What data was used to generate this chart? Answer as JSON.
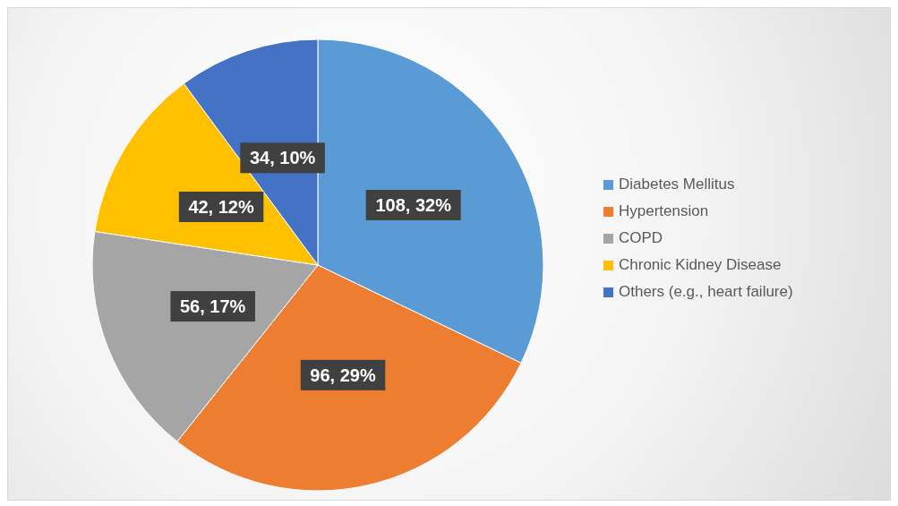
{
  "chart_data": {
    "type": "pie",
    "categories": [
      "Diabetes Mellitus",
      "Hypertension",
      "COPD",
      "Chronic Kidney Disease",
      "Others (e.g., heart failure)"
    ],
    "values": [
      108,
      96,
      56,
      42,
      34
    ],
    "colors": [
      "#5b9bd5",
      "#ed7d31",
      "#a5a5a5",
      "#ffc000",
      "#4472c4"
    ],
    "value_labels": [
      "108, 32%",
      "96, 29%",
      "56, 17%",
      "42, 12%",
      "34, 10%"
    ],
    "legend": "right"
  }
}
